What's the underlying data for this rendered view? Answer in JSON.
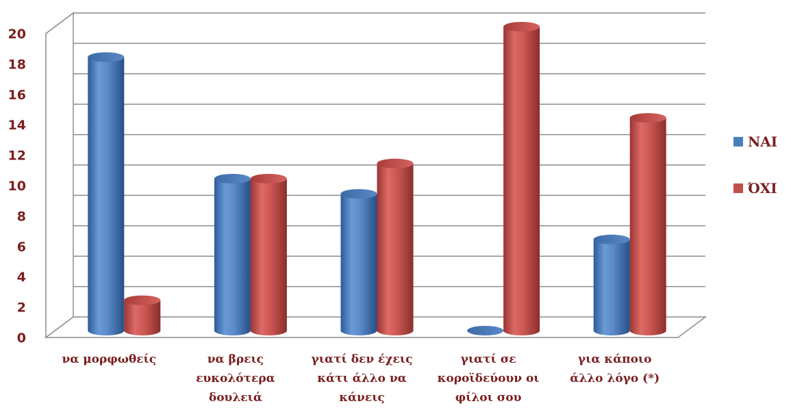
{
  "chart_data": {
    "type": "bar",
    "categories": [
      [
        "να μορφωθείς"
      ],
      [
        "να βρεις",
        "ευκολότερα",
        "δουλειά"
      ],
      [
        "γιατί δεν έχεις",
        "κάτι άλλο να",
        "κάνεις"
      ],
      [
        "γιατί σε",
        "κοροϊδεύουν οι",
        "φίλοι σου"
      ],
      [
        "για κάποιο",
        "άλλο λόγο (*)"
      ]
    ],
    "series": [
      {
        "name": "ΝΑΙ",
        "values": [
          18,
          10,
          9,
          0,
          6
        ],
        "color": "#4a7ebb"
      },
      {
        "name": "ΌΧΙ",
        "values": [
          2,
          10,
          11,
          20,
          14
        ],
        "color": "#c0504d"
      }
    ],
    "ylim": [
      0,
      20
    ],
    "yticks": [
      "0",
      "2",
      "4",
      "6",
      "8",
      "10",
      "12",
      "14",
      "16",
      "18",
      "20"
    ],
    "grid": true,
    "legend": "right",
    "title": "",
    "xlabel": "",
    "ylabel": ""
  }
}
